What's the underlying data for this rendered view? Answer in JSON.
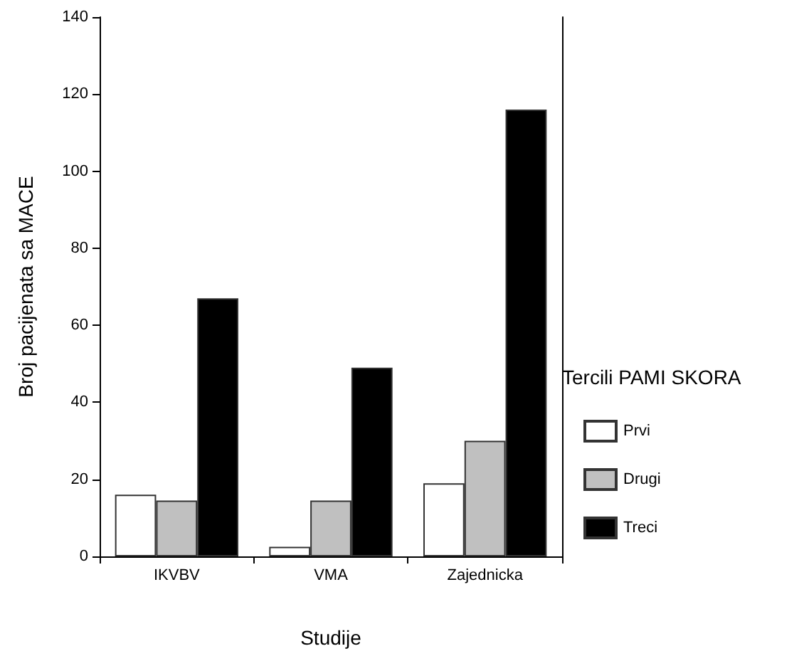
{
  "chart_data": {
    "type": "bar",
    "xlabel": "Studije",
    "ylabel": "Broj pacijenata sa MACE",
    "legend_title": "Tercili PAMI SKORA",
    "categories": [
      "IKVBV",
      "VMA",
      "Zajednicka"
    ],
    "series": [
      {
        "name": "Prvi",
        "color": "#ffffff",
        "values": [
          16,
          2.5,
          19
        ]
      },
      {
        "name": "Drugi",
        "color": "#c0c0c0",
        "values": [
          14.5,
          14.5,
          30
        ]
      },
      {
        "name": "Treci",
        "color": "#000000",
        "values": [
          67,
          49,
          116
        ]
      }
    ],
    "ylim": [
      0,
      140
    ],
    "yticks": [
      0,
      20,
      40,
      60,
      80,
      100,
      120,
      140
    ],
    "grid": false,
    "legend": "right"
  }
}
